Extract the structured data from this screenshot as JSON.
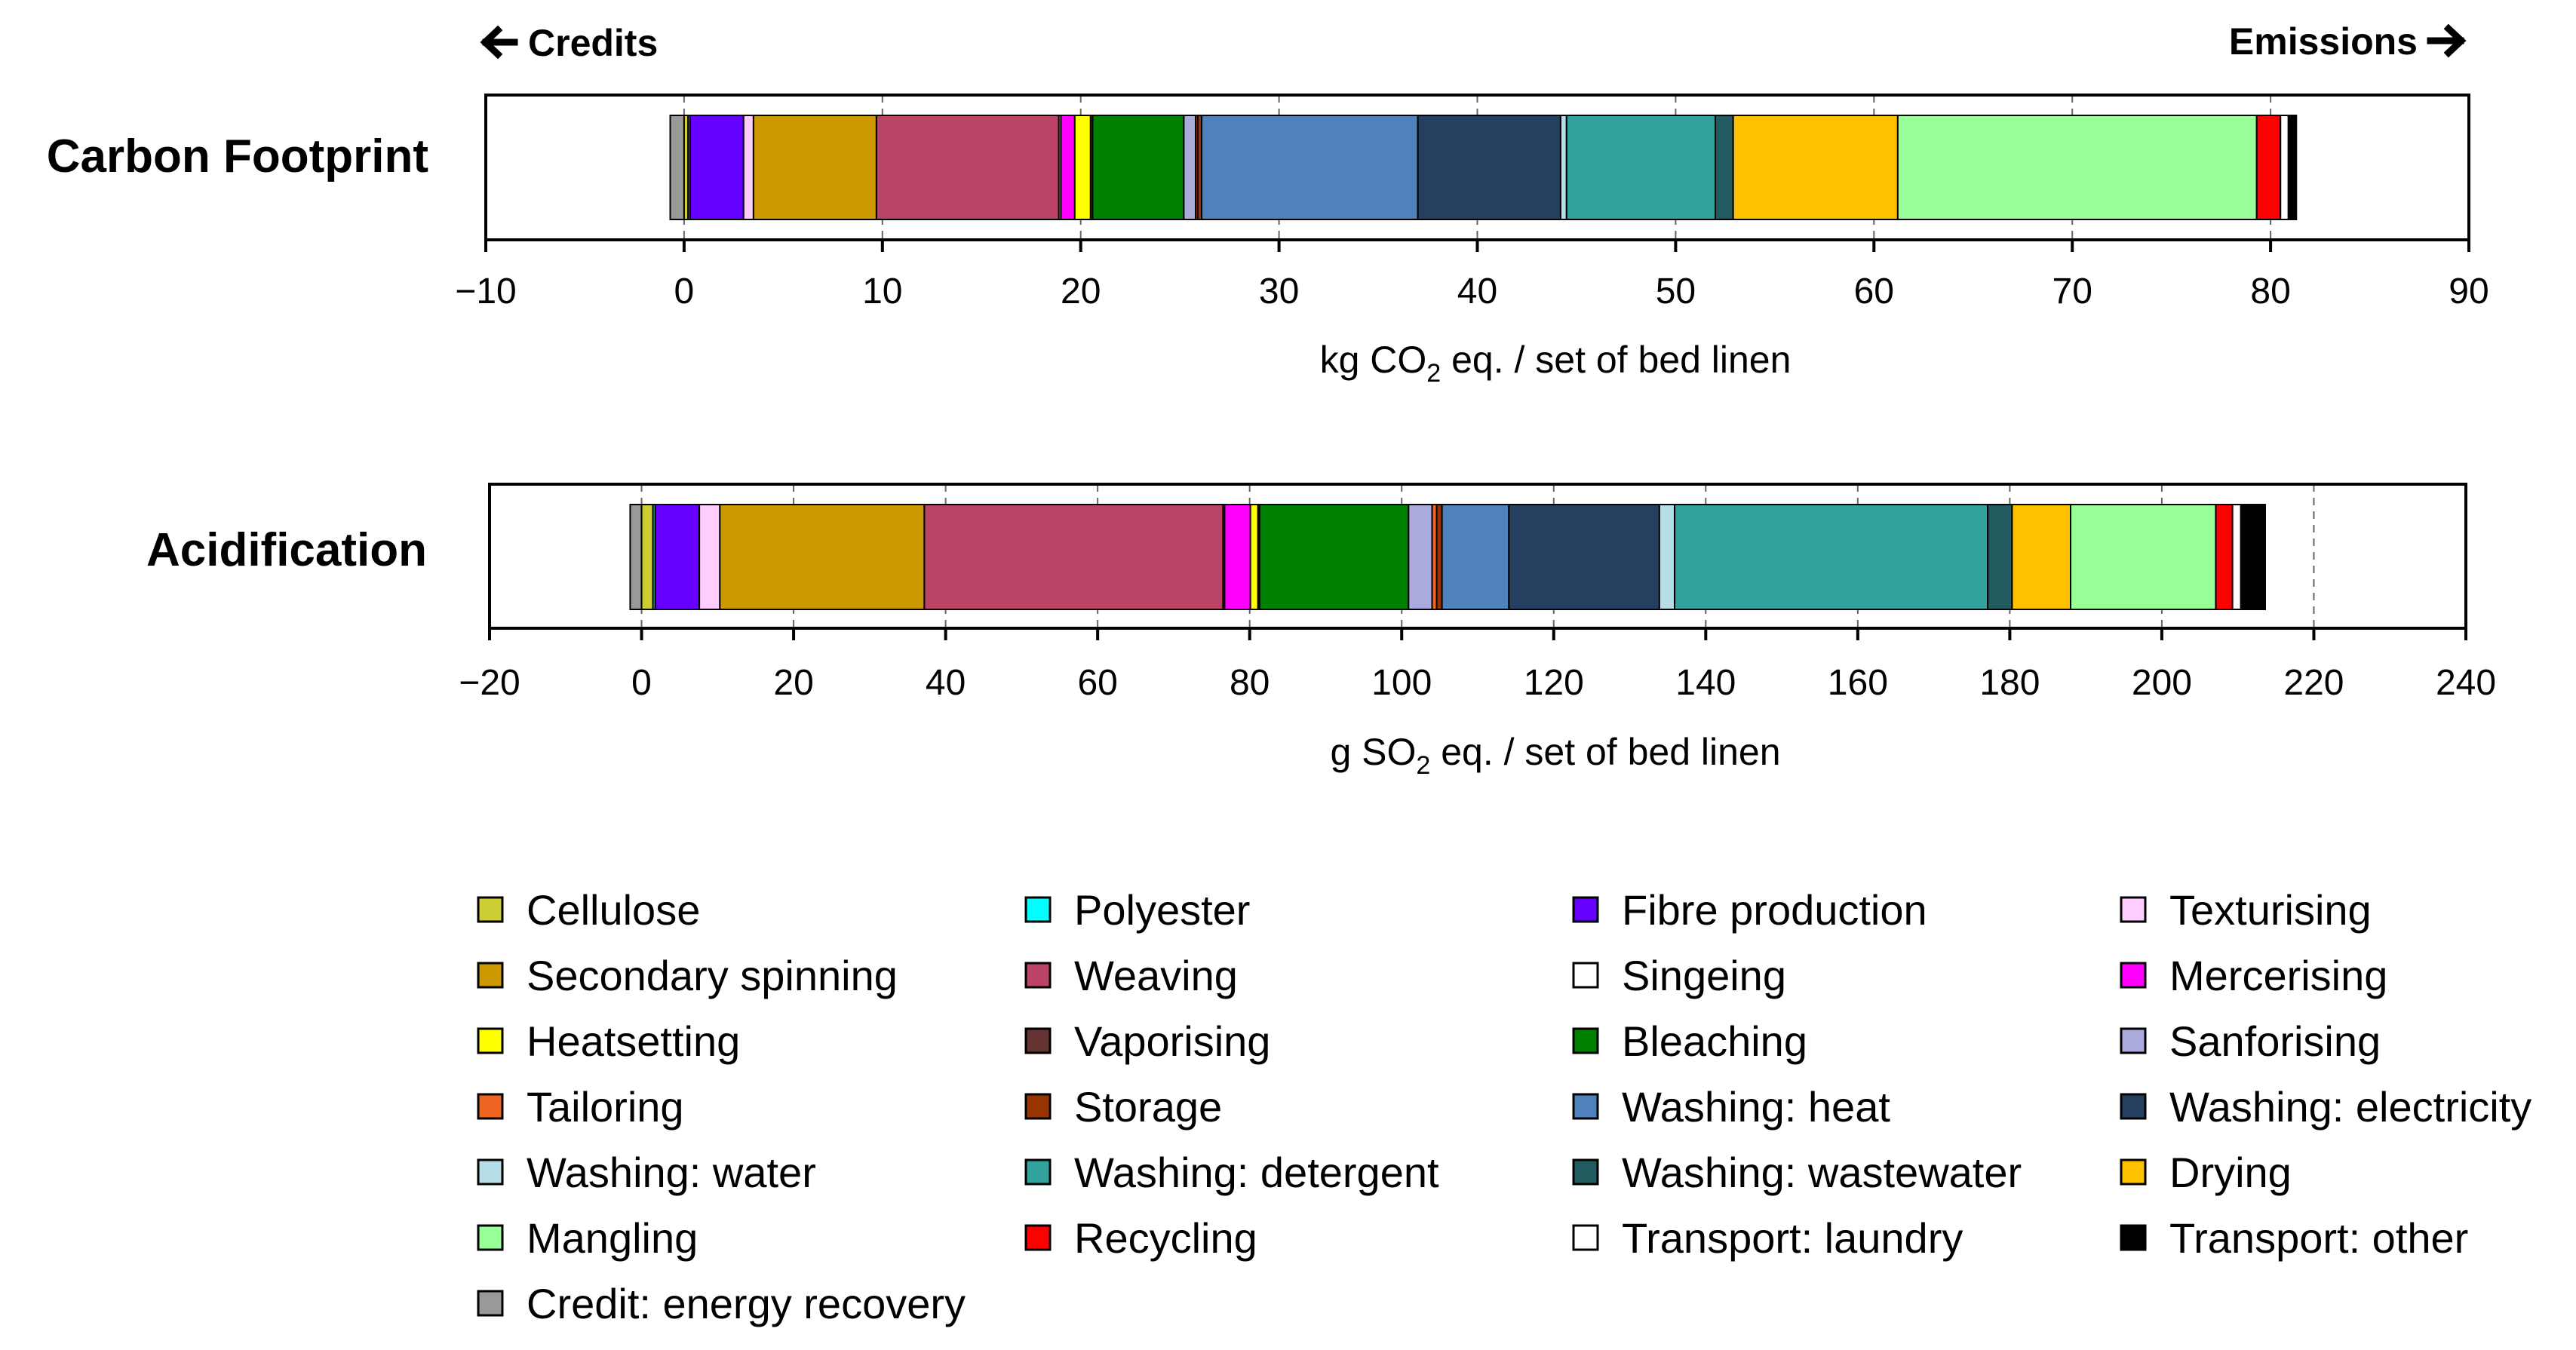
{
  "chart_data": {
    "type": "bar",
    "orientation": "horizontal-stacked",
    "direction_labels": {
      "credits": "Credits",
      "emissions": "Emissions"
    },
    "legend": [
      {
        "key": "cellulose",
        "label": "Cellulose",
        "color": "#CCCC33"
      },
      {
        "key": "polyester",
        "label": "Polyester",
        "color": "#00FFFF"
      },
      {
        "key": "fibre",
        "label": "Fibre production",
        "color": "#6600FF"
      },
      {
        "key": "texturising",
        "label": "Texturising",
        "color": "#FFCCFF"
      },
      {
        "key": "secspin",
        "label": "Secondary spinning",
        "color": "#CC9900"
      },
      {
        "key": "weaving",
        "label": "Weaving",
        "color": "#BB4466"
      },
      {
        "key": "singeing",
        "label": "Singeing",
        "color": "#FFFFFF"
      },
      {
        "key": "mercerising",
        "label": "Mercerising",
        "color": "#FF00FF"
      },
      {
        "key": "heatsetting",
        "label": "Heatsetting",
        "color": "#FFFF00"
      },
      {
        "key": "vaporising",
        "label": "Vaporising",
        "color": "#663333"
      },
      {
        "key": "bleaching",
        "label": "Bleaching",
        "color": "#008000"
      },
      {
        "key": "sanforising",
        "label": "Sanforising",
        "color": "#AAAADD"
      },
      {
        "key": "tailoring",
        "label": "Tailoring",
        "color": "#EE6622"
      },
      {
        "key": "storage",
        "label": "Storage",
        "color": "#993300"
      },
      {
        "key": "wash_heat",
        "label": "Washing: heat",
        "color": "#4F81BD"
      },
      {
        "key": "wash_elec",
        "label": "Washing: electricity",
        "color": "#243F60"
      },
      {
        "key": "wash_water",
        "label": "Washing: water",
        "color": "#B7DDE8"
      },
      {
        "key": "wash_det",
        "label": "Washing: detergent",
        "color": "#31A39C"
      },
      {
        "key": "wash_ww",
        "label": "Washing: wastewater",
        "color": "#215A5F"
      },
      {
        "key": "drying",
        "label": "Drying",
        "color": "#FFC000"
      },
      {
        "key": "mangling",
        "label": "Mangling",
        "color": "#99FF99"
      },
      {
        "key": "recycling",
        "label": "Recycling",
        "color": "#FF0000"
      },
      {
        "key": "transport_l",
        "label": "Transport: laundry",
        "color": "#FFFFFF"
      },
      {
        "key": "transport_o",
        "label": "Transport: other",
        "color": "#000000"
      },
      {
        "key": "credit",
        "label": "Credit: energy recovery",
        "color": "#999999"
      }
    ],
    "panels": [
      {
        "title": "Carbon Footprint",
        "xlabel_pre": "kg CO",
        "xlabel_sub": "2",
        "xlabel_post": " eq. / set of bed linen",
        "xlim": [
          -10,
          90
        ],
        "ticks": [
          -10,
          0,
          10,
          20,
          30,
          40,
          50,
          60,
          70,
          80,
          90
        ],
        "tick_labels": [
          "−10",
          "0",
          "10",
          "20",
          "30",
          "40",
          "50",
          "60",
          "70",
          "80",
          "90"
        ],
        "credit_segments": [
          {
            "key": "credit",
            "value": -0.7
          }
        ],
        "segments": [
          {
            "key": "cellulose",
            "value": 0.2
          },
          {
            "key": "polyester",
            "value": 0.1
          },
          {
            "key": "fibre",
            "value": 2.7
          },
          {
            "key": "texturising",
            "value": 0.5
          },
          {
            "key": "secspin",
            "value": 6.2
          },
          {
            "key": "weaving",
            "value": 9.2
          },
          {
            "key": "singeing",
            "value": 0.1
          },
          {
            "key": "mercerising",
            "value": 0.7
          },
          {
            "key": "heatsetting",
            "value": 0.8
          },
          {
            "key": "vaporising",
            "value": 0.1
          },
          {
            "key": "bleaching",
            "value": 4.6
          },
          {
            "key": "sanforising",
            "value": 0.6
          },
          {
            "key": "tailoring",
            "value": 0.1
          },
          {
            "key": "storage",
            "value": 0.2
          },
          {
            "key": "wash_heat",
            "value": 10.9
          },
          {
            "key": "wash_elec",
            "value": 7.2
          },
          {
            "key": "wash_water",
            "value": 0.3
          },
          {
            "key": "wash_det",
            "value": 7.5
          },
          {
            "key": "wash_ww",
            "value": 0.9
          },
          {
            "key": "drying",
            "value": 8.3
          },
          {
            "key": "mangling",
            "value": 18.1
          },
          {
            "key": "recycling",
            "value": 1.2
          },
          {
            "key": "transport_l",
            "value": 0.4
          },
          {
            "key": "transport_o",
            "value": 0.4
          }
        ]
      },
      {
        "title": "Acidification",
        "xlabel_pre": "g SO",
        "xlabel_sub": "2",
        "xlabel_post": " eq. / set of bed linen",
        "xlim": [
          -20,
          240
        ],
        "ticks": [
          -20,
          0,
          20,
          40,
          60,
          80,
          100,
          120,
          140,
          160,
          180,
          200,
          220,
          240
        ],
        "tick_labels": [
          "−20",
          "0",
          "20",
          "40",
          "60",
          "80",
          "100",
          "120",
          "140",
          "160",
          "180",
          "200",
          "220",
          "240"
        ],
        "credit_segments": [
          {
            "key": "credit",
            "value": -1.5
          }
        ],
        "segments": [
          {
            "key": "cellulose",
            "value": 1.5
          },
          {
            "key": "polyester",
            "value": 0.3
          },
          {
            "key": "fibre",
            "value": 5.8
          },
          {
            "key": "texturising",
            "value": 2.7
          },
          {
            "key": "secspin",
            "value": 26.9
          },
          {
            "key": "weaving",
            "value": 39.3
          },
          {
            "key": "singeing",
            "value": 0.2
          },
          {
            "key": "mercerising",
            "value": 3.4
          },
          {
            "key": "heatsetting",
            "value": 1.0
          },
          {
            "key": "vaporising",
            "value": 0.2
          },
          {
            "key": "bleaching",
            "value": 19.6
          },
          {
            "key": "sanforising",
            "value": 3.1
          },
          {
            "key": "tailoring",
            "value": 0.6
          },
          {
            "key": "storage",
            "value": 0.7
          },
          {
            "key": "wash_heat",
            "value": 8.8
          },
          {
            "key": "wash_elec",
            "value": 19.8
          },
          {
            "key": "wash_water",
            "value": 2.0
          },
          {
            "key": "wash_det",
            "value": 41.2
          },
          {
            "key": "wash_ww",
            "value": 3.2
          },
          {
            "key": "drying",
            "value": 7.7
          },
          {
            "key": "mangling",
            "value": 19.1
          },
          {
            "key": "recycling",
            "value": 2.2
          },
          {
            "key": "transport_l",
            "value": 1.1
          },
          {
            "key": "transport_o",
            "value": 3.2
          }
        ]
      }
    ]
  }
}
